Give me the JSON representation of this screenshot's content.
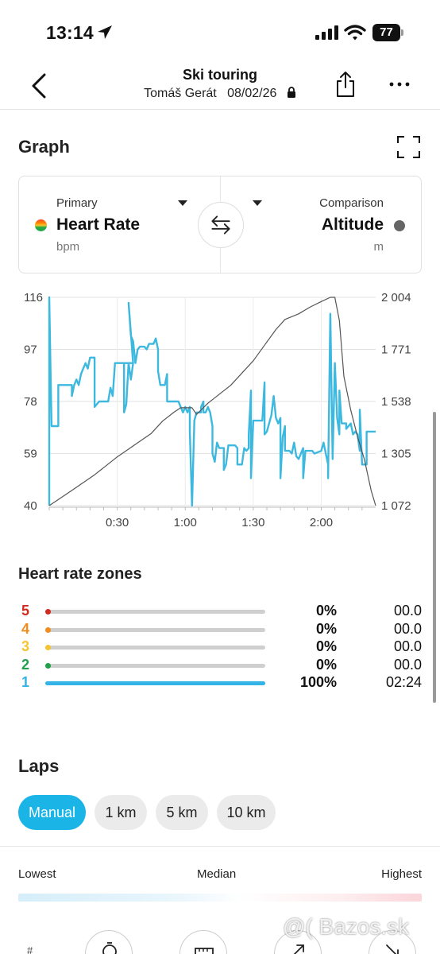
{
  "status_bar": {
    "time": "13:14",
    "battery": "77"
  },
  "header": {
    "title": "Ski touring",
    "user": "Tomáš Gerát",
    "date": "08/02/26"
  },
  "graph": {
    "section_title": "Graph",
    "primary": {
      "caption": "Primary",
      "metric": "Heart Rate",
      "unit": "bpm"
    },
    "comparison": {
      "caption": "Comparison",
      "metric": "Altitude",
      "unit": "m"
    }
  },
  "chart_data": {
    "type": "line",
    "x_ticks": [
      "0:30",
      "1:00",
      "1:30",
      "2:00"
    ],
    "y_left_ticks": [
      "116",
      "97",
      "78",
      "59",
      "40"
    ],
    "y_right_ticks": [
      "2 004",
      "1 771",
      "1 538",
      "1 305",
      "1 072"
    ],
    "y_left_range": [
      40,
      116
    ],
    "y_right_range": [
      1072,
      2004
    ],
    "x_range_min": [
      0,
      144
    ],
    "series": [
      {
        "color": "#3db8de",
        "axis": "left",
        "points": [
          [
            0,
            40
          ],
          [
            0,
            116
          ],
          [
            1,
            69
          ],
          [
            4,
            69
          ],
          [
            4,
            84
          ],
          [
            10,
            84
          ],
          [
            10,
            80
          ],
          [
            11,
            84
          ],
          [
            12,
            86
          ],
          [
            13,
            84
          ],
          [
            14,
            88
          ],
          [
            15,
            90
          ],
          [
            16,
            92
          ],
          [
            17,
            90
          ],
          [
            18,
            94
          ],
          [
            20,
            94
          ],
          [
            20,
            76
          ],
          [
            22,
            78
          ],
          [
            24,
            78
          ],
          [
            26,
            78
          ],
          [
            27,
            83
          ],
          [
            28,
            80
          ],
          [
            29,
            92
          ],
          [
            33,
            92
          ],
          [
            33,
            74
          ],
          [
            34,
            77
          ],
          [
            35,
            92
          ],
          [
            36,
            86
          ],
          [
            37,
            92
          ],
          [
            34,
            92
          ],
          [
            33,
            92
          ],
          [
            34,
            92
          ],
          [
            35,
            92
          ],
          [
            36,
            92
          ],
          [
            37,
            92
          ],
          [
            35,
            114
          ],
          [
            36,
            102
          ],
          [
            37,
            100
          ],
          [
            38,
            92
          ],
          [
            39,
            97
          ],
          [
            40,
            98
          ],
          [
            42,
            98
          ],
          [
            43,
            97
          ],
          [
            44,
            99
          ],
          [
            46,
            99
          ],
          [
            47,
            101
          ],
          [
            48,
            97
          ],
          [
            48,
            89
          ],
          [
            49,
            84
          ],
          [
            51,
            84
          ],
          [
            52,
            88
          ],
          [
            52,
            78
          ],
          [
            55,
            78
          ],
          [
            57,
            78
          ],
          [
            58,
            76
          ],
          [
            59,
            74
          ],
          [
            60,
            76
          ],
          [
            61,
            74
          ],
          [
            62,
            76
          ],
          [
            62,
            67
          ],
          [
            63,
            40
          ],
          [
            64,
            71
          ],
          [
            65,
            74
          ],
          [
            67,
            74
          ],
          [
            67,
            76
          ],
          [
            68,
            78
          ],
          [
            68,
            74
          ],
          [
            69,
            74
          ],
          [
            70,
            76
          ],
          [
            71,
            74
          ],
          [
            72,
            69
          ],
          [
            72,
            59
          ],
          [
            73,
            56
          ],
          [
            74,
            63
          ],
          [
            75,
            61
          ],
          [
            77,
            61
          ],
          [
            77,
            53
          ],
          [
            78,
            55
          ],
          [
            79,
            62
          ],
          [
            82,
            62
          ],
          [
            83,
            61
          ],
          [
            83,
            55
          ],
          [
            85,
            55
          ],
          [
            86,
            61
          ],
          [
            87,
            60
          ],
          [
            88,
            61
          ],
          [
            88,
            66
          ],
          [
            89,
            82
          ],
          [
            89,
            50
          ],
          [
            90,
            71
          ],
          [
            93,
            71
          ],
          [
            94,
            71
          ],
          [
            95,
            85
          ],
          [
            95,
            66
          ],
          [
            96,
            67
          ],
          [
            98,
            73
          ],
          [
            99,
            80
          ],
          [
            100,
            72
          ],
          [
            101,
            70
          ],
          [
            102,
            72
          ],
          [
            102,
            50
          ],
          [
            103,
            65
          ],
          [
            104,
            69
          ],
          [
            104,
            60
          ],
          [
            106,
            60
          ],
          [
            107,
            59
          ],
          [
            108,
            63
          ],
          [
            109,
            58
          ],
          [
            110,
            57
          ],
          [
            112,
            61
          ],
          [
            112,
            50
          ],
          [
            113,
            60
          ],
          [
            116,
            60
          ],
          [
            117,
            59
          ],
          [
            120,
            60
          ],
          [
            121,
            63
          ],
          [
            122,
            59
          ],
          [
            123,
            55
          ],
          [
            123,
            50
          ],
          [
            124,
            110
          ],
          [
            125,
            57
          ],
          [
            126,
            92
          ],
          [
            127,
            72
          ],
          [
            128,
            66
          ],
          [
            128,
            82
          ],
          [
            129,
            70
          ],
          [
            131,
            70
          ],
          [
            131,
            68
          ],
          [
            133,
            70
          ],
          [
            134,
            66
          ],
          [
            135,
            67
          ],
          [
            136,
            66
          ],
          [
            137,
            60
          ],
          [
            137,
            75
          ],
          [
            138,
            55
          ],
          [
            140,
            55
          ],
          [
            140,
            67
          ],
          [
            141,
            67
          ],
          [
            143,
            67
          ],
          [
            144,
            67
          ]
        ]
      },
      {
        "color": "#555555",
        "axis": "right",
        "points": [
          [
            0,
            1072
          ],
          [
            10,
            1140
          ],
          [
            20,
            1210
          ],
          [
            30,
            1290
          ],
          [
            40,
            1360
          ],
          [
            45,
            1395
          ],
          [
            50,
            1450
          ],
          [
            55,
            1490
          ],
          [
            58,
            1510
          ],
          [
            63,
            1510
          ],
          [
            65,
            1480
          ],
          [
            70,
            1530
          ],
          [
            80,
            1610
          ],
          [
            90,
            1720
          ],
          [
            95,
            1790
          ],
          [
            100,
            1860
          ],
          [
            104,
            1905
          ],
          [
            110,
            1930
          ],
          [
            115,
            1960
          ],
          [
            120,
            1985
          ],
          [
            124,
            2004
          ],
          [
            126,
            2004
          ],
          [
            128,
            1900
          ],
          [
            130,
            1650
          ],
          [
            133,
            1500
          ],
          [
            136,
            1380
          ],
          [
            139,
            1280
          ],
          [
            142,
            1140
          ],
          [
            144,
            1072
          ]
        ]
      }
    ]
  },
  "zones": {
    "section_title": "Heart rate zones",
    "items": [
      {
        "num": "5",
        "color": "#d12a1e",
        "fraction": 0,
        "pct": "0%",
        "time": "00.0"
      },
      {
        "num": "4",
        "color": "#f28c1c",
        "fraction": 0,
        "pct": "0%",
        "time": "00.0"
      },
      {
        "num": "3",
        "color": "#f4c430",
        "fraction": 0,
        "pct": "0%",
        "time": "00.0"
      },
      {
        "num": "2",
        "color": "#1ea14a",
        "fraction": 0,
        "pct": "0%",
        "time": "00.0"
      },
      {
        "num": "1",
        "color": "#34b3e6",
        "fraction": 1,
        "pct": "100%",
        "time": "02:24"
      }
    ]
  },
  "laps": {
    "section_title": "Laps",
    "chips": [
      "Manual",
      "1 km",
      "5 km",
      "10 km"
    ],
    "range_labels": {
      "low": "Lowest",
      "mid": "Median",
      "high": "Highest"
    },
    "hash": "#"
  },
  "watermark": "@( Bazos.sk"
}
